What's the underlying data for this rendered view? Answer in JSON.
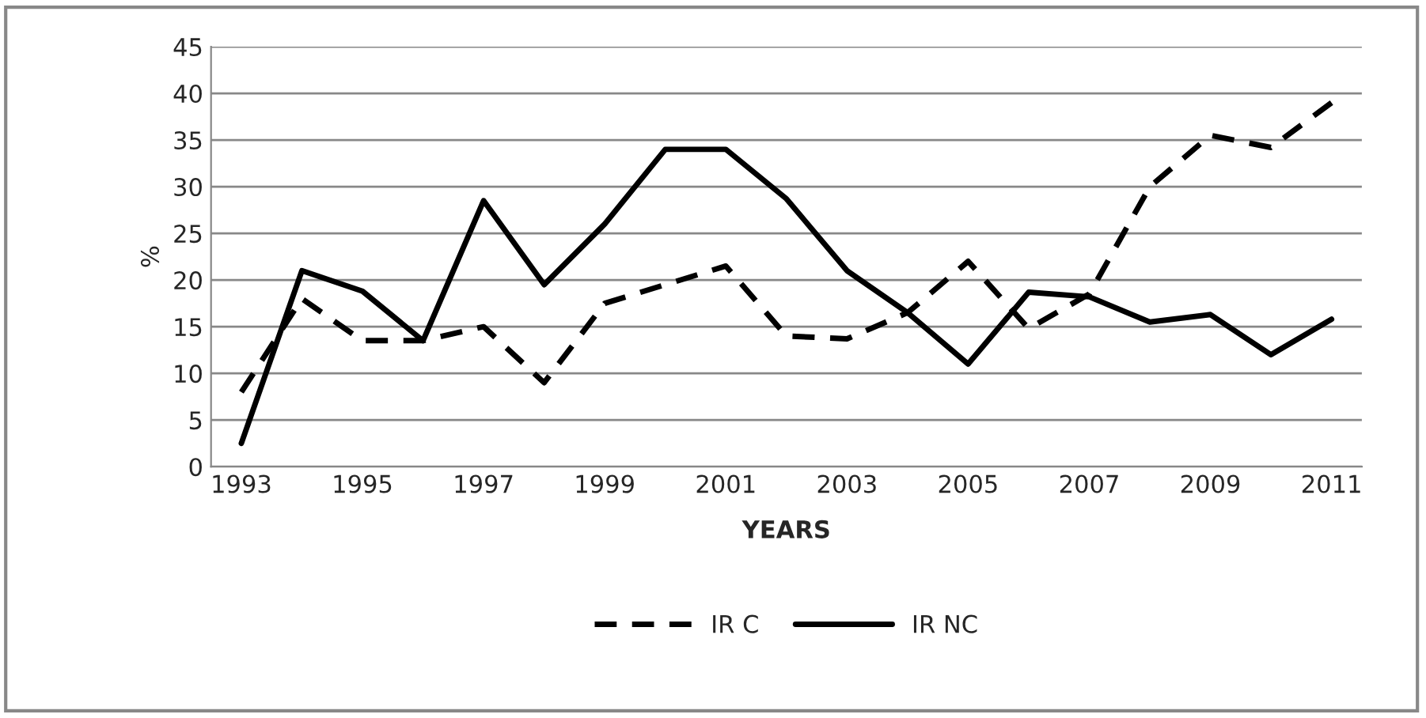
{
  "chart_data": {
    "type": "line",
    "xlabel": "YEARS",
    "ylabel": "%",
    "categories": [
      "1993",
      null,
      "1995",
      null,
      "1997",
      null,
      "1999",
      null,
      "2001",
      null,
      "2003",
      null,
      "2005",
      null,
      "2007",
      null,
      "2009",
      null,
      "2011"
    ],
    "series": [
      {
        "name": "IR C",
        "color": "#000000",
        "line_style": "dashed",
        "values": [
          8,
          18,
          13.5,
          13.5,
          15,
          9,
          17.5,
          19.5,
          21.5,
          14,
          13.7,
          16.5,
          22,
          14.8,
          18.5,
          30,
          35.5,
          34.2,
          39
        ]
      },
      {
        "name": "IR NC",
        "color": "#000000",
        "line_style": "solid",
        "values": [
          2.5,
          21,
          18.8,
          13.5,
          28.5,
          19.5,
          26,
          34,
          34,
          28.7,
          21,
          16.5,
          11,
          18.7,
          18.2,
          15.5,
          16.3,
          12,
          15.8
        ]
      }
    ],
    "ylim": [
      0,
      45
    ],
    "yticks": [
      0,
      5,
      10,
      15,
      20,
      25,
      30,
      35,
      40,
      45
    ],
    "grid": "y",
    "legend": "bottom"
  }
}
